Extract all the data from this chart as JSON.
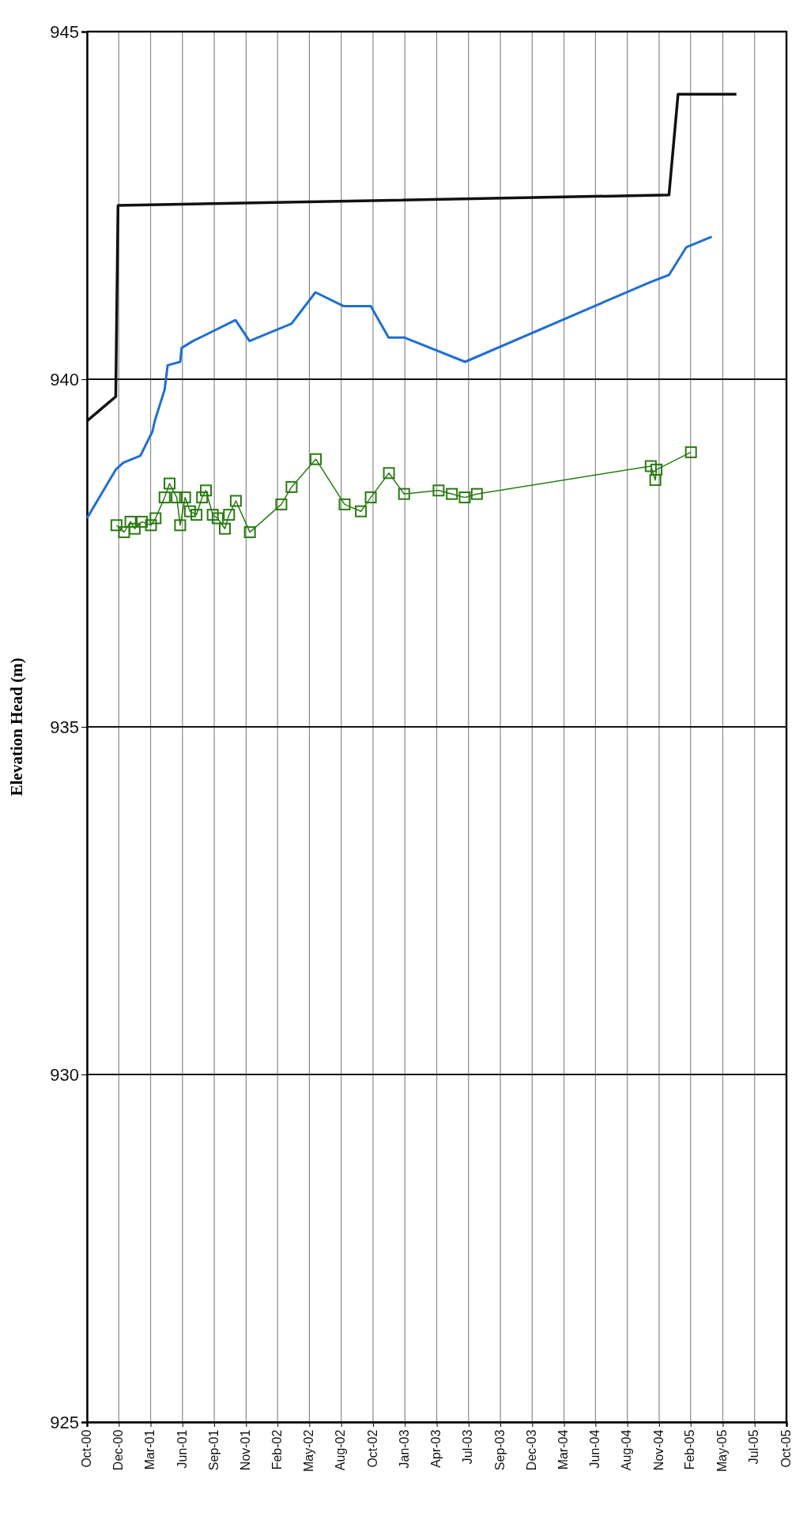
{
  "chart_data": {
    "type": "line",
    "ylabel": "Elevation Head (m)",
    "ylim": [
      925,
      945
    ],
    "yticks": [
      925,
      930,
      935,
      940,
      945
    ],
    "xlim": [
      "2000-10-01",
      "2005-10-21"
    ],
    "xticks": [
      {
        "value": "2000-10-01",
        "label": "Oct-00"
      },
      {
        "value": "2000-12-24",
        "label": "Dec-00"
      },
      {
        "value": "2001-03-18",
        "label": "Mar-01"
      },
      {
        "value": "2001-06-10",
        "label": "Jun-01"
      },
      {
        "value": "2001-09-02",
        "label": "Sep-01"
      },
      {
        "value": "2001-11-25",
        "label": "Nov-01"
      },
      {
        "value": "2002-02-16",
        "label": "Feb-02"
      },
      {
        "value": "2002-05-11",
        "label": "May-02"
      },
      {
        "value": "2002-08-03",
        "label": "Aug-02"
      },
      {
        "value": "2002-10-26",
        "label": "Oct-02"
      },
      {
        "value": "2003-01-18",
        "label": "Jan-03"
      },
      {
        "value": "2003-04-12",
        "label": "Apr-03"
      },
      {
        "value": "2003-07-05",
        "label": "Jul-03"
      },
      {
        "value": "2003-09-27",
        "label": "Sep-03"
      },
      {
        "value": "2003-12-20",
        "label": "Dec-03"
      },
      {
        "value": "2004-03-13",
        "label": "Mar-04"
      },
      {
        "value": "2004-06-04",
        "label": "Jun-04"
      },
      {
        "value": "2004-08-27",
        "label": "Aug-04"
      },
      {
        "value": "2004-11-19",
        "label": "Nov-04"
      },
      {
        "value": "2005-02-10",
        "label": "Feb-05"
      },
      {
        "value": "2005-05-06",
        "label": "May-05"
      },
      {
        "value": "2005-07-29",
        "label": "Jul-05"
      },
      {
        "value": "2005-10-21",
        "label": "Oct-05"
      }
    ],
    "grid": true,
    "series": [
      {
        "color": "#111111",
        "x": [
          "2000-10-01",
          "2000-12-16",
          "2000-12-22",
          "2004-12-15",
          "2005-01-08",
          "2005-06-11"
        ],
        "values": [
          939.4,
          939.75,
          942.5,
          942.65,
          944.1,
          944.1
        ]
      },
      {
        "color": "#1f6fd1",
        "x": [
          "2000-10-01",
          "2000-12-16",
          "2001-01-05",
          "2001-02-19",
          "2001-03-23",
          "2001-03-29",
          "2001-04-24",
          "2001-05-02",
          "2001-06-04",
          "2001-06-08",
          "2001-07-08",
          "2001-10-28",
          "2001-12-04",
          "2002-03-25",
          "2002-05-27",
          "2002-08-10",
          "2002-10-20",
          "2002-12-06",
          "2003-01-16",
          "2003-06-26",
          "2004-10-28",
          "2004-12-15",
          "2005-01-30",
          "2005-04-07"
        ],
        "values": [
          938.0,
          938.7,
          938.8,
          938.9,
          939.25,
          939.4,
          939.85,
          940.2,
          940.25,
          940.45,
          940.55,
          940.85,
          940.55,
          940.8,
          941.25,
          941.05,
          941.05,
          940.6,
          940.6,
          940.25,
          941.4,
          941.5,
          941.9,
          942.05
        ]
      },
      {
        "color": "#2a7a12",
        "marker": "square",
        "x": [
          "2000-12-18",
          "2001-01-07",
          "2001-01-24",
          "2001-02-04",
          "2001-02-23",
          "2001-03-19",
          "2001-03-31",
          "2001-04-24",
          "2001-05-07",
          "2001-05-26",
          "2001-06-04",
          "2001-06-17",
          "2001-06-30",
          "2001-07-17",
          "2001-08-01",
          "2001-08-11",
          "2001-08-29",
          "2001-09-11",
          "2001-09-30",
          "2001-10-11",
          "2001-10-29",
          "2001-12-05",
          "2002-02-26",
          "2002-03-25",
          "2002-05-28",
          "2002-08-12",
          "2002-09-24",
          "2002-10-20",
          "2002-12-07",
          "2003-01-16",
          "2003-04-17",
          "2003-05-22",
          "2003-06-25",
          "2003-07-27",
          "2004-10-28",
          "2004-11-09",
          "2004-11-12",
          "2005-02-11"
        ],
        "values": [
          937.9,
          937.8,
          937.95,
          937.85,
          937.95,
          937.9,
          938.0,
          938.3,
          938.5,
          938.3,
          937.9,
          938.3,
          938.1,
          938.05,
          938.3,
          938.4,
          938.05,
          938.0,
          937.85,
          938.05,
          938.25,
          937.8,
          938.2,
          938.45,
          938.85,
          938.2,
          938.1,
          938.3,
          938.65,
          938.35,
          938.4,
          938.35,
          938.3,
          938.35,
          938.75,
          938.55,
          938.7,
          938.95
        ]
      }
    ]
  }
}
